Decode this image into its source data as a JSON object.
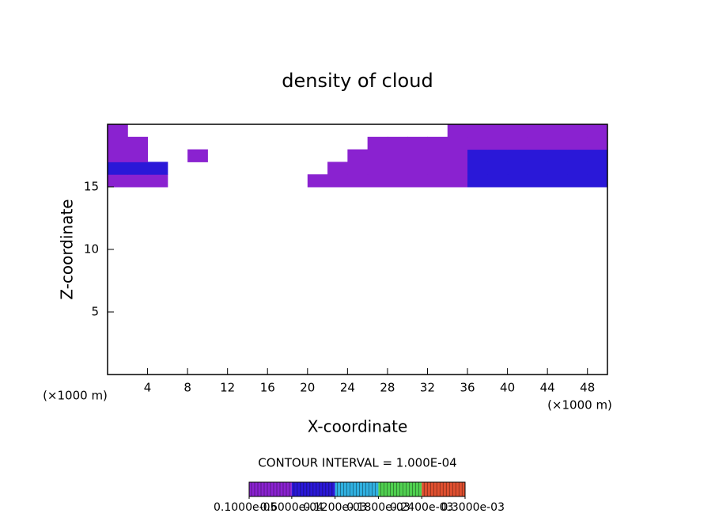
{
  "chart_data": {
    "type": "contour",
    "title": "density of cloud",
    "xlabel": "X-coordinate",
    "ylabel": "Z-coordinate",
    "x_unit": "(×1000 m)",
    "x_unit_right": "(×1000 m)",
    "interval_label": "CONTOUR INTERVAL = 1.000E-04",
    "xlim": [
      0,
      50
    ],
    "ylim": [
      0,
      20
    ],
    "xticks": [
      4,
      8,
      12,
      16,
      20,
      24,
      28,
      32,
      36,
      40,
      44,
      48
    ],
    "yticks": [
      5,
      10,
      15
    ],
    "x": [
      1,
      3,
      5,
      7,
      9,
      11,
      13,
      15,
      17,
      19,
      21,
      23,
      25,
      27,
      29,
      31,
      33,
      35,
      37,
      39,
      41,
      43,
      45,
      47,
      49
    ],
    "y": [
      15.5,
      16.5,
      17.5,
      18.5,
      19.5
    ],
    "z": [
      [
        4e-05,
        4e-05,
        4e-05,
        0,
        0,
        0,
        0,
        0,
        0,
        0,
        2e-05,
        4e-05,
        4e-05,
        4e-05,
        4e-05,
        4e-05,
        4e-05,
        4e-05,
        7e-05,
        7e-05,
        7e-05,
        7e-05,
        7e-05,
        7e-05,
        7e-05
      ],
      [
        7e-05,
        7e-05,
        7e-05,
        0,
        0,
        0,
        0,
        0,
        0,
        0,
        0,
        4e-05,
        4e-05,
        4e-05,
        4e-05,
        5e-05,
        5e-05,
        5e-05,
        9e-05,
        9e-05,
        9e-05,
        9e-05,
        9e-05,
        9e-05,
        9e-05
      ],
      [
        4e-05,
        3e-05,
        0,
        0,
        3e-05,
        0,
        0,
        0,
        0,
        0,
        0,
        0,
        4e-05,
        4e-05,
        4e-05,
        4e-05,
        4e-05,
        4e-05,
        7e-05,
        7e-05,
        7e-05,
        7e-05,
        7e-05,
        7e-05,
        7e-05
      ],
      [
        4e-05,
        2e-05,
        0,
        0,
        0,
        0,
        0,
        0,
        0,
        0,
        0,
        0,
        0,
        3e-05,
        3e-05,
        3e-05,
        3e-05,
        5e-05,
        5e-05,
        5e-05,
        5e-05,
        5e-05,
        5e-05,
        5e-05,
        5e-05
      ],
      [
        3e-05,
        0,
        0,
        0,
        0,
        0,
        0,
        0,
        0,
        0,
        0,
        0,
        0,
        0,
        0,
        0,
        0,
        4e-05,
        4e-05,
        4e-05,
        4e-05,
        4e-05,
        4e-05,
        4e-05,
        4e-05
      ]
    ],
    "colorbar_ticks": [
      {
        "value": 1e-06,
        "label": "0.1000e-05"
      },
      {
        "value": 6e-05,
        "label": "0.6000e-04"
      },
      {
        "value": 0.00012,
        "label": "0.1200e-03"
      },
      {
        "value": 0.00018,
        "label": "0.1800e-03"
      },
      {
        "value": 0.00024,
        "label": "0.2400e-03"
      },
      {
        "value": 0.0003,
        "label": "0.3000e-03"
      }
    ],
    "level_colors": [
      "#8a22d0",
      "#2a18d8",
      "#30b0e0",
      "#50d050",
      "#e05030"
    ]
  }
}
